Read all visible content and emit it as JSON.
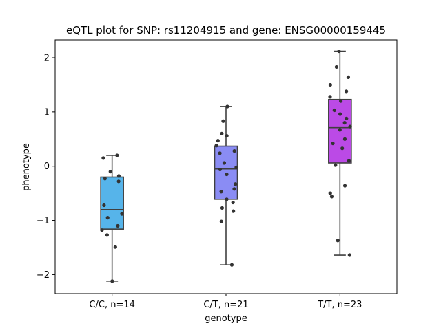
{
  "chart_data": {
    "type": "box",
    "title": "eQTL plot for SNP: rs11204915 and gene: ENSG00000159445",
    "xlabel": "genotype",
    "ylabel": "phenotype",
    "ylim": [
      -2.35,
      2.33
    ],
    "yticks": [
      -2,
      -1,
      0,
      1,
      2
    ],
    "grid": false,
    "categories": [
      "C/C, n=14",
      "C/T, n=21",
      "T/T, n=23"
    ],
    "colors": [
      "#56b4ea",
      "#8a8cf4",
      "#bb4ae6"
    ],
    "groups": [
      {
        "name": "C/C, n=14",
        "whisker_low": -2.12,
        "q1": -1.16,
        "median": -0.8,
        "q3": -0.2,
        "whisker_high": 0.2,
        "points": [
          0.2,
          0.15,
          -0.1,
          -0.18,
          -0.23,
          -0.28,
          -0.72,
          -0.88,
          -0.95,
          -1.1,
          -1.18,
          -1.27,
          -1.49,
          -2.12
        ]
      },
      {
        "name": "C/T, n=21",
        "whisker_low": -1.82,
        "q1": -0.61,
        "median": -0.05,
        "q3": 0.37,
        "whisker_high": 1.1,
        "points": [
          1.1,
          0.83,
          0.6,
          0.56,
          0.47,
          0.38,
          0.28,
          0.24,
          0.06,
          -0.02,
          -0.06,
          -0.15,
          -0.33,
          -0.42,
          -0.47,
          -0.61,
          -0.67,
          -0.77,
          -0.83,
          -1.02,
          -1.82
        ]
      },
      {
        "name": "T/T, n=23",
        "whisker_low": -1.64,
        "q1": 0.06,
        "median": 0.71,
        "q3": 1.23,
        "whisker_high": 2.12,
        "points": [
          2.12,
          1.83,
          1.64,
          1.5,
          1.38,
          1.28,
          1.2,
          1.03,
          0.96,
          0.88,
          0.8,
          0.73,
          0.67,
          0.5,
          0.42,
          0.33,
          0.1,
          0.02,
          -0.36,
          -0.5,
          -0.56,
          -1.37,
          -1.64
        ]
      }
    ]
  }
}
